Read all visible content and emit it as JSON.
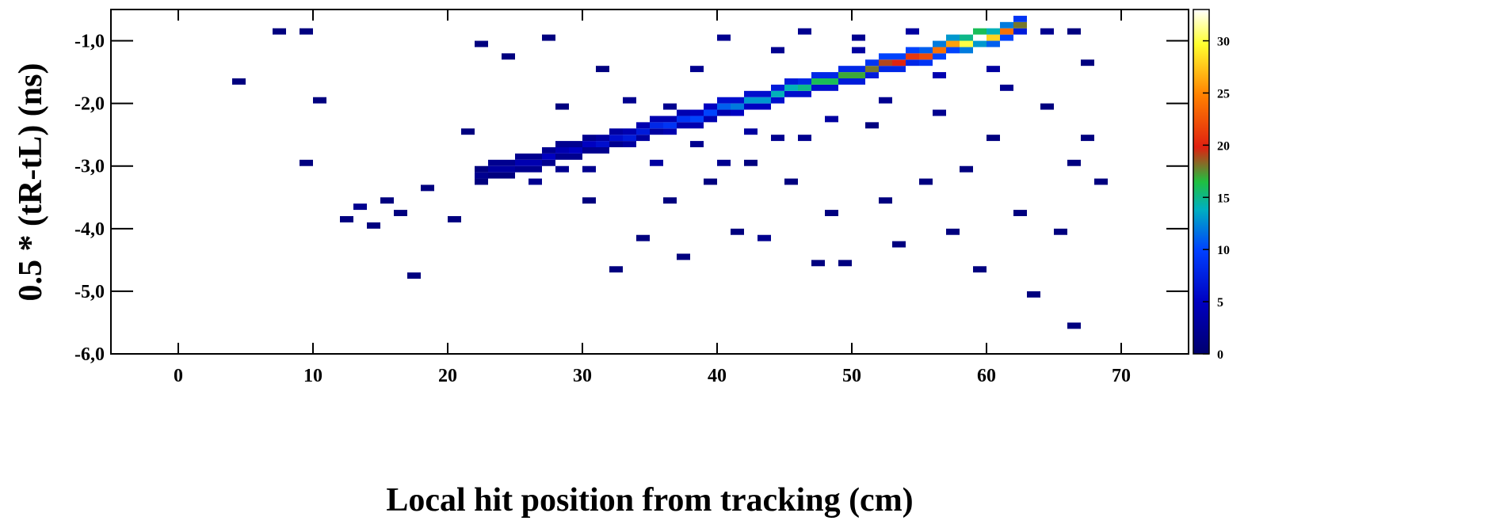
{
  "chart_data": {
    "type": "heatmap",
    "xlabel": "Local hit position from tracking (cm)",
    "ylabel": "0.5 * (tR-tL) (ns)",
    "xlim": [
      -5,
      75
    ],
    "ylim": [
      -6.0,
      -0.5
    ],
    "xticks": [
      0,
      10,
      20,
      30,
      40,
      50,
      60,
      70
    ],
    "yticks": [
      {
        "value": -6.0,
        "label": "-6,0"
      },
      {
        "value": -5.0,
        "label": "-5,0"
      },
      {
        "value": -4.0,
        "label": "-4,0"
      },
      {
        "value": -3.0,
        "label": "-3,0"
      },
      {
        "value": -2.0,
        "label": "-2,0"
      },
      {
        "value": -1.0,
        "label": "-1,0"
      }
    ],
    "zlim": [
      0,
      33
    ],
    "zticks": [
      0,
      5,
      10,
      15,
      20,
      25,
      30
    ],
    "bin_size": [
      1,
      0.1
    ],
    "colorscale": [
      [
        0,
        "#00006e"
      ],
      [
        0.15,
        "#0000c0"
      ],
      [
        0.3,
        "#0040ff"
      ],
      [
        0.42,
        "#00b0c0"
      ],
      [
        0.5,
        "#20c040"
      ],
      [
        0.6,
        "#e02010"
      ],
      [
        0.75,
        "#ff8000"
      ],
      [
        0.9,
        "#ffff30"
      ],
      [
        1,
        "#ffffff"
      ]
    ],
    "x": [
      22,
      22,
      22,
      23,
      23,
      23,
      24,
      24,
      24,
      25,
      25,
      25,
      26,
      26,
      26,
      27,
      27,
      27,
      28,
      28,
      28,
      29,
      29,
      29,
      30,
      30,
      30,
      31,
      31,
      31,
      32,
      32,
      32,
      33,
      33,
      33,
      34,
      34,
      34,
      35,
      35,
      35,
      36,
      36,
      36,
      37,
      37,
      37,
      38,
      38,
      38,
      39,
      39,
      39,
      40,
      40,
      40,
      41,
      41,
      41,
      42,
      42,
      42,
      43,
      43,
      43,
      44,
      44,
      44,
      45,
      45,
      45,
      46,
      46,
      46,
      47,
      47,
      47,
      48,
      48,
      48,
      49,
      49,
      49,
      50,
      50,
      50,
      51,
      51,
      51,
      52,
      52,
      52,
      53,
      53,
      53,
      54,
      54,
      54,
      55,
      55,
      55,
      56,
      56,
      56,
      57,
      57,
      57,
      58,
      58,
      58,
      59,
      59,
      59,
      60,
      60,
      60,
      61,
      61,
      61,
      62,
      62,
      62,
      7,
      9,
      4,
      10,
      9,
      12,
      13,
      14,
      15,
      17,
      16,
      18,
      20,
      21,
      22,
      24,
      27,
      28,
      30,
      31,
      32,
      33,
      34,
      36,
      37,
      38,
      39,
      40,
      41,
      42,
      43,
      44,
      45,
      46,
      47,
      48,
      49,
      50,
      51,
      52,
      53,
      54,
      55,
      56,
      57,
      58,
      59,
      60,
      61,
      62,
      63,
      64,
      65,
      66,
      66,
      67,
      67,
      68,
      64,
      66,
      46,
      35,
      36,
      40,
      44,
      48,
      52,
      56,
      60,
      38,
      42,
      50,
      30,
      26,
      28
    ],
    "y": [
      -3.3,
      -3.2,
      -3.1,
      -3.2,
      -3.1,
      -3.0,
      -3.2,
      -3.1,
      -3.0,
      -3.1,
      -3.0,
      -2.9,
      -3.1,
      -3.0,
      -2.9,
      -3.0,
      -2.9,
      -2.8,
      -2.9,
      -2.8,
      -2.7,
      -2.9,
      -2.8,
      -2.7,
      -2.8,
      -2.7,
      -2.6,
      -2.8,
      -2.7,
      -2.6,
      -2.7,
      -2.6,
      -2.5,
      -2.7,
      -2.6,
      -2.5,
      -2.6,
      -2.5,
      -2.4,
      -2.5,
      -2.4,
      -2.3,
      -2.5,
      -2.4,
      -2.3,
      -2.4,
      -2.3,
      -2.2,
      -2.4,
      -2.3,
      -2.2,
      -2.3,
      -2.2,
      -2.1,
      -2.2,
      -2.1,
      -2.0,
      -2.2,
      -2.1,
      -2.0,
      -2.1,
      -2.0,
      -1.9,
      -2.1,
      -2.0,
      -1.9,
      -2.0,
      -1.9,
      -1.8,
      -1.9,
      -1.8,
      -1.7,
      -1.9,
      -1.8,
      -1.7,
      -1.8,
      -1.7,
      -1.6,
      -1.8,
      -1.7,
      -1.6,
      -1.7,
      -1.6,
      -1.5,
      -1.7,
      -1.6,
      -1.5,
      -1.6,
      -1.5,
      -1.4,
      -1.5,
      -1.4,
      -1.3,
      -1.5,
      -1.4,
      -1.3,
      -1.4,
      -1.3,
      -1.2,
      -1.4,
      -1.3,
      -1.2,
      -1.3,
      -1.2,
      -1.1,
      -1.2,
      -1.1,
      -1.0,
      -1.2,
      -1.1,
      -1.0,
      -1.1,
      -1.0,
      -0.9,
      -1.1,
      -1.0,
      -0.9,
      -1.0,
      -0.9,
      -0.8,
      -0.9,
      -0.8,
      -0.7,
      -0.9,
      -0.9,
      -1.7,
      -2.0,
      -3.0,
      -3.9,
      -3.7,
      -4.0,
      -3.6,
      -4.8,
      -3.8,
      -3.4,
      -3.9,
      -2.5,
      -1.1,
      -1.3,
      -1.0,
      -2.1,
      -3.6,
      -1.5,
      -4.7,
      -2.0,
      -4.2,
      -3.6,
      -4.5,
      -1.5,
      -3.3,
      -1.0,
      -4.1,
      -3.0,
      -4.2,
      -1.2,
      -3.3,
      -2.6,
      -4.6,
      -3.8,
      -4.6,
      -1.0,
      -2.4,
      -3.6,
      -4.3,
      -0.9,
      -3.3,
      -2.2,
      -4.1,
      -3.1,
      -4.7,
      -2.6,
      -1.8,
      -3.8,
      -5.1,
      -2.1,
      -4.1,
      -3.0,
      -5.6,
      -1.4,
      -2.6,
      -3.3,
      -0.9,
      -0.9,
      -0.9,
      -3.0,
      -2.1,
      -3.0,
      -2.6,
      -2.3,
      -2.0,
      -1.6,
      -1.5,
      -2.7,
      -2.5,
      -1.2,
      -3.1,
      -3.3,
      -3.1
    ],
    "values": [
      1,
      2,
      1,
      1,
      3,
      2,
      1,
      3,
      2,
      2,
      4,
      2,
      2,
      4,
      2,
      2,
      5,
      2,
      2,
      4,
      2,
      2,
      5,
      2,
      2,
      5,
      2,
      2,
      6,
      3,
      2,
      6,
      3,
      3,
      7,
      4,
      3,
      7,
      4,
      3,
      8,
      4,
      4,
      9,
      4,
      4,
      9,
      4,
      4,
      10,
      5,
      4,
      10,
      5,
      4,
      11,
      6,
      5,
      12,
      6,
      5,
      13,
      6,
      5,
      13,
      6,
      6,
      14,
      7,
      6,
      14,
      7,
      6,
      15,
      8,
      6,
      16,
      8,
      6,
      16,
      8,
      7,
      17,
      8,
      7,
      17,
      8,
      7,
      18,
      9,
      8,
      19,
      10,
      8,
      20,
      10,
      8,
      21,
      10,
      9,
      22,
      11,
      10,
      24,
      12,
      10,
      26,
      13,
      12,
      30,
      15,
      13,
      33,
      16,
      11,
      28,
      14,
      10,
      24,
      12,
      7,
      18,
      9,
      1,
      1,
      1,
      1,
      1,
      1,
      2,
      1,
      1,
      1,
      1,
      1,
      1,
      1,
      1,
      1,
      1,
      1,
      1,
      1,
      1,
      2,
      1,
      1,
      1,
      2,
      1,
      2,
      1,
      1,
      2,
      2,
      1,
      2,
      1,
      1,
      1,
      2,
      1,
      1,
      1,
      3,
      1,
      2,
      1,
      1,
      1,
      1,
      2,
      1,
      1,
      1,
      1,
      1,
      1,
      1,
      1,
      1,
      2,
      1,
      2,
      3,
      2,
      2,
      2,
      3,
      2,
      4,
      3,
      2,
      3,
      3,
      2,
      2,
      2
    ]
  }
}
